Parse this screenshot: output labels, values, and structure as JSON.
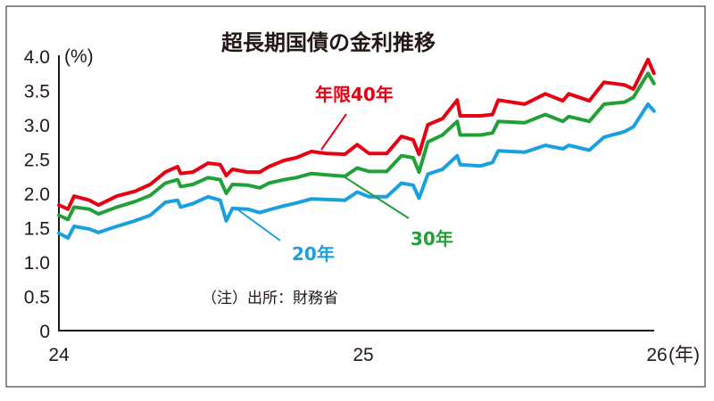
{
  "chart_data": {
    "type": "line",
    "title": "超長期国債の金利推移",
    "ylabel": "(%)",
    "xlabel": "(年)",
    "ylim": [
      0,
      4.0
    ],
    "xlim": [
      2024.0,
      2026.0
    ],
    "yticks": [
      "0",
      "0.5",
      "1.0",
      "1.5",
      "2.0",
      "2.5",
      "3.0",
      "3.5",
      "4.0"
    ],
    "xticks": [
      {
        "value": 2024,
        "label": "24"
      },
      {
        "value": 2025,
        "label": "25"
      },
      {
        "value": 2026,
        "label": "26"
      }
    ],
    "grid": false,
    "note": "（注）出所：財務省",
    "x": [
      2024.0,
      2024.03,
      2024.05,
      2024.1,
      2024.13,
      2024.19,
      2024.25,
      2024.3,
      2024.35,
      2024.39,
      2024.4,
      2024.44,
      2024.49,
      2024.53,
      2024.55,
      2024.57,
      2024.62,
      2024.66,
      2024.69,
      2024.74,
      2024.78,
      2024.83,
      2024.88,
      2024.94,
      2024.98,
      2025.02,
      2025.08,
      2025.13,
      2025.17,
      2025.19,
      2025.22,
      2025.27,
      2025.32,
      2025.33,
      2025.4,
      2025.44,
      2025.46,
      2025.55,
      2025.62,
      2025.68,
      2025.7,
      2025.77,
      2025.82,
      2025.89,
      2025.92,
      2025.97,
      2025.99
    ],
    "series": [
      {
        "name": "年限40年",
        "color": "#e60012",
        "values": [
          1.83,
          1.77,
          1.96,
          1.9,
          1.83,
          1.96,
          2.03,
          2.13,
          2.31,
          2.39,
          2.29,
          2.31,
          2.44,
          2.42,
          2.26,
          2.35,
          2.31,
          2.31,
          2.39,
          2.48,
          2.52,
          2.61,
          2.58,
          2.57,
          2.71,
          2.58,
          2.58,
          2.83,
          2.78,
          2.57,
          3.0,
          3.09,
          3.36,
          3.13,
          3.13,
          3.15,
          3.36,
          3.3,
          3.45,
          3.35,
          3.45,
          3.35,
          3.62,
          3.58,
          3.52,
          3.95,
          3.75
        ]
      },
      {
        "name": "30年",
        "color": "#22a038",
        "values": [
          1.68,
          1.62,
          1.8,
          1.77,
          1.7,
          1.8,
          1.88,
          1.97,
          2.15,
          2.2,
          2.1,
          2.13,
          2.23,
          2.2,
          2.0,
          2.13,
          2.12,
          2.08,
          2.15,
          2.2,
          2.23,
          2.29,
          2.27,
          2.25,
          2.37,
          2.32,
          2.32,
          2.55,
          2.52,
          2.31,
          2.75,
          2.85,
          3.05,
          2.85,
          2.85,
          2.88,
          3.05,
          3.03,
          3.15,
          3.05,
          3.12,
          3.05,
          3.3,
          3.33,
          3.4,
          3.75,
          3.6
        ]
      },
      {
        "name": "20年",
        "color": "#1aa0e0",
        "values": [
          1.42,
          1.35,
          1.52,
          1.48,
          1.43,
          1.52,
          1.6,
          1.68,
          1.87,
          1.9,
          1.8,
          1.85,
          1.95,
          1.9,
          1.6,
          1.78,
          1.77,
          1.72,
          1.76,
          1.82,
          1.86,
          1.92,
          1.91,
          1.9,
          2.02,
          1.95,
          1.95,
          2.15,
          2.12,
          1.93,
          2.28,
          2.35,
          2.55,
          2.42,
          2.4,
          2.45,
          2.62,
          2.6,
          2.7,
          2.65,
          2.7,
          2.63,
          2.82,
          2.9,
          2.97,
          3.3,
          3.2
        ]
      }
    ]
  }
}
